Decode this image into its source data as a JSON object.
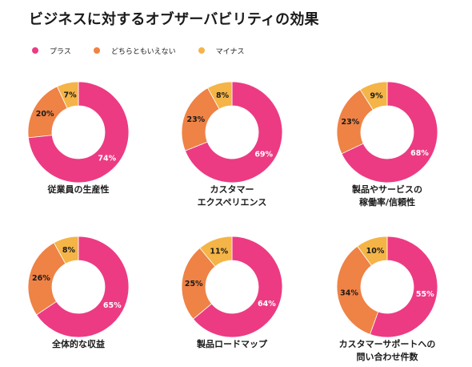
{
  "page": {
    "title": "ビジネスに対するオブザーバビリティの効果"
  },
  "legend": [
    {
      "label": "プラス",
      "color": "#ec3b83"
    },
    {
      "label": "どちらともいえない",
      "color": "#ef8245"
    },
    {
      "label": "マイナス",
      "color": "#f4b447"
    }
  ],
  "chart_data": [
    {
      "type": "pie",
      "title_lines": [
        "従業員の生産性"
      ],
      "categories": [
        "プラス",
        "どちらともいえない",
        "マイナス"
      ],
      "values": [
        74,
        20,
        7
      ],
      "labels": [
        "74%",
        "20%",
        "7%"
      ]
    },
    {
      "type": "pie",
      "title_lines": [
        "カスタマー",
        "エクスペリエンス"
      ],
      "categories": [
        "プラス",
        "どちらともいえない",
        "マイナス"
      ],
      "values": [
        69,
        23,
        8
      ],
      "labels": [
        "69%",
        "23%",
        "8%"
      ]
    },
    {
      "type": "pie",
      "title_lines": [
        "製品やサービスの",
        "稼働率/信頼性"
      ],
      "categories": [
        "プラス",
        "どちらともいえない",
        "マイナス"
      ],
      "values": [
        68,
        23,
        9
      ],
      "labels": [
        "68%",
        "23%",
        "9%"
      ]
    },
    {
      "type": "pie",
      "title_lines": [
        "全体的な収益"
      ],
      "categories": [
        "プラス",
        "どちらともいえない",
        "マイナス"
      ],
      "values": [
        65,
        26,
        8
      ],
      "labels": [
        "65%",
        "26%",
        "8%"
      ]
    },
    {
      "type": "pie",
      "title_lines": [
        "製品ロードマップ"
      ],
      "categories": [
        "プラス",
        "どちらともいえない",
        "マイナス"
      ],
      "values": [
        64,
        25,
        11
      ],
      "labels": [
        "64%",
        "25%",
        "11%"
      ]
    },
    {
      "type": "pie",
      "title_lines": [
        "カスタマーサポートへの",
        "問い合わせ件数"
      ],
      "categories": [
        "プラス",
        "どちらともいえない",
        "マイナス"
      ],
      "values": [
        55,
        34,
        10
      ],
      "labels": [
        "55%",
        "34%",
        "10%"
      ]
    }
  ]
}
